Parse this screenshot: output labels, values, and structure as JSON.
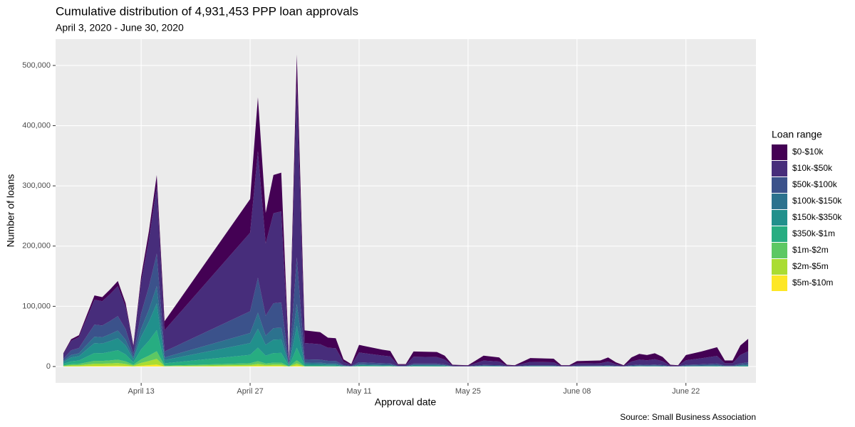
{
  "chart_data": {
    "type": "stacked_area",
    "title": "Cumulative distribution of 4,931,453 PPP loan approvals",
    "subtitle": "April 3, 2020 - June 30, 2020",
    "x_label": "Approval date",
    "y_label": "Number of loans",
    "source": "Source: Small Business Association",
    "legend_title": "Loan range",
    "legend": "right",
    "grid": true,
    "x": [
      "2020-04-03",
      "2020-04-04",
      "2020-04-05",
      "2020-04-06",
      "2020-04-07",
      "2020-04-08",
      "2020-04-09",
      "2020-04-10",
      "2020-04-11",
      "2020-04-12",
      "2020-04-13",
      "2020-04-14",
      "2020-04-15",
      "2020-04-16",
      "2020-04-27",
      "2020-04-28",
      "2020-04-29",
      "2020-04-30",
      "2020-05-01",
      "2020-05-02",
      "2020-05-03",
      "2020-05-04",
      "2020-05-06",
      "2020-05-07",
      "2020-05-08",
      "2020-05-09",
      "2020-05-10",
      "2020-05-11",
      "2020-05-14",
      "2020-05-15",
      "2020-05-16",
      "2020-05-17",
      "2020-05-18",
      "2020-05-21",
      "2020-05-22",
      "2020-05-23",
      "2020-05-25",
      "2020-05-27",
      "2020-05-29",
      "2020-05-30",
      "2020-05-31",
      "2020-06-02",
      "2020-06-05",
      "2020-06-06",
      "2020-06-07",
      "2020-06-08",
      "2020-06-11",
      "2020-06-12",
      "2020-06-13",
      "2020-06-14",
      "2020-06-15",
      "2020-06-16",
      "2020-06-17",
      "2020-06-18",
      "2020-06-19",
      "2020-06-20",
      "2020-06-21",
      "2020-06-22",
      "2020-06-24",
      "2020-06-26",
      "2020-06-27",
      "2020-06-28",
      "2020-06-29",
      "2020-06-30"
    ],
    "xlim": [
      "2020-04-02",
      "2020-07-01"
    ],
    "xticks": [
      {
        "value": "2020-04-13",
        "label": "April 13"
      },
      {
        "value": "2020-04-27",
        "label": "April 27"
      },
      {
        "value": "2020-05-11",
        "label": "May 11"
      },
      {
        "value": "2020-05-25",
        "label": "May 25"
      },
      {
        "value": "2020-06-08",
        "label": "June 08"
      },
      {
        "value": "2020-06-22",
        "label": "June 22"
      }
    ],
    "ylim": [
      -27200,
      543700
    ],
    "yticks": [
      0,
      {
        "value": 100000,
        "label": "100,000"
      },
      {
        "value": 200000,
        "label": "200,000"
      },
      {
        "value": 300000,
        "label": "300,000"
      },
      {
        "value": 400000,
        "label": "400,000"
      },
      {
        "value": 500000,
        "label": "500,000"
      }
    ],
    "series": [
      {
        "name": "$0-$10k",
        "color": "#440154",
        "values": [
          1300,
          2700,
          3100,
          5100,
          7100,
          6900,
          7700,
          8500,
          6300,
          2100,
          9000,
          13500,
          19100,
          15000,
          55600,
          89400,
          51000,
          63600,
          64400,
          2000,
          51800,
          21000,
          20000,
          16800,
          16500,
          4200,
          1400,
          12600,
          9800,
          9100,
          1400,
          1400,
          8800,
          8400,
          6300,
          1100,
          900,
          8100,
          6800,
          1400,
          900,
          6300,
          5900,
          900,
          900,
          4100,
          4500,
          6800,
          3200,
          900,
          6800,
          9500,
          8600,
          9900,
          7200,
          1400,
          900,
          8600,
          11300,
          14400,
          4500,
          4500,
          15800,
          20700
        ]
      },
      {
        "name": "$10k-$50k",
        "color": "#472D7B",
        "values": [
          7700,
          15800,
          18200,
          29800,
          41300,
          40300,
          44800,
          49700,
          36800,
          12300,
          52500,
          78800,
          111300,
          35300,
          130700,
          210100,
          119900,
          149500,
          151300,
          4700,
          284900,
          27000,
          25600,
          21600,
          21100,
          5400,
          1800,
          16200,
          12600,
          11700,
          1800,
          1800,
          11300,
          10800,
          8100,
          1300,
          800,
          7200,
          6000,
          1200,
          800,
          5600,
          5200,
          800,
          800,
          3600,
          4000,
          6000,
          2800,
          800,
          6000,
          8400,
          7600,
          8800,
          6400,
          1200,
          800,
          7600,
          10000,
          12800,
          4000,
          4000,
          14000,
          18400
        ]
      },
      {
        "name": "$50k-$100k",
        "color": "#3B528B",
        "values": [
          3700,
          7700,
          8800,
          14500,
          20100,
          19600,
          21800,
          24100,
          17900,
          6000,
          25500,
          38300,
          54100,
          9800,
          36100,
          58100,
          33200,
          41300,
          41900,
          1300,
          77700,
          5400,
          5100,
          4300,
          4200,
          1100,
          400,
          3200,
          2500,
          2300,
          400,
          400,
          2200,
          2200,
          1600,
          300,
          200,
          1400,
          1200,
          200,
          200,
          1100,
          1000,
          200,
          200,
          700,
          800,
          1200,
          600,
          200,
          1200,
          1700,
          1500,
          1800,
          1300,
          200,
          200,
          1500,
          2000,
          2600,
          800,
          800,
          2800,
          3700
        ]
      },
      {
        "name": "$100k-$150k",
        "color": "#2C728E",
        "values": [
          2000,
          4100,
          4700,
          7700,
          10600,
          10400,
          11500,
          12800,
          9500,
          3200,
          13500,
          20300,
          28600,
          4500,
          16700,
          26800,
          15300,
          19100,
          19300,
          600,
          36300,
          2400,
          2300,
          1900,
          1900,
          500,
          200,
          1400,
          1100,
          1000,
          200,
          200,
          1000,
          1000,
          700,
          100,
          100,
          500,
          500,
          100,
          100,
          400,
          400,
          100,
          100,
          300,
          300,
          500,
          200,
          100,
          500,
          600,
          600,
          700,
          500,
          100,
          100,
          600,
          800,
          1000,
          300,
          300,
          1100,
          1400
        ]
      },
      {
        "name": "$150k-$350k",
        "color": "#21908C",
        "values": [
          3100,
          6300,
          7300,
          11900,
          16500,
          16100,
          17900,
          19900,
          14700,
          4900,
          21000,
          31500,
          44500,
          5300,
          19500,
          31300,
          17900,
          22300,
          22500,
          700,
          36300,
          2400,
          2300,
          1900,
          1900,
          500,
          100,
          1400,
          1100,
          1000,
          100,
          100,
          1000,
          1000,
          700,
          100,
          0,
          500,
          400,
          100,
          0,
          400,
          300,
          0,
          0,
          200,
          300,
          400,
          200,
          0,
          400,
          500,
          500,
          600,
          400,
          100,
          0,
          500,
          600,
          800,
          300,
          300,
          900,
          1200
        ]
      },
      {
        "name": "$350k-$1m",
        "color": "#27AD81",
        "values": [
          2400,
          5000,
          5700,
          9400,
          13000,
          12700,
          14100,
          15600,
          11600,
          3900,
          16500,
          24800,
          35000,
          3800,
          13900,
          22400,
          12800,
          15900,
          16100,
          500,
          20700,
          1200,
          1100,
          1000,
          900,
          200,
          100,
          700,
          600,
          500,
          100,
          100,
          500,
          400,
          400,
          100,
          0,
          200,
          100,
          0,
          0,
          100,
          100,
          0,
          0,
          100,
          100,
          100,
          0,
          0,
          100,
          200,
          200,
          200,
          200,
          0,
          0,
          200,
          300,
          300,
          100,
          100,
          300,
          500
        ]
      },
      {
        "name": "$1m-$2m",
        "color": "#5DC863",
        "values": [
          900,
          1800,
          2100,
          3400,
          4700,
          4600,
          5100,
          5700,
          4200,
          1400,
          6000,
          9000,
          12700,
          800,
          2800,
          4500,
          2600,
          3200,
          3200,
          100,
          5200,
          300,
          300,
          200,
          200,
          100,
          0,
          200,
          100,
          200,
          0,
          0,
          100,
          100,
          100,
          0,
          0,
          100,
          0,
          0,
          0,
          100,
          100,
          0,
          0,
          0,
          0,
          0,
          0,
          0,
          0,
          100,
          0,
          0,
          0,
          0,
          0,
          0,
          0,
          100,
          0,
          0,
          100,
          100
        ]
      },
      {
        "name": "$2m-$5m",
        "color": "#AADC32",
        "values": [
          700,
          1400,
          1600,
          2600,
          3500,
          3500,
          3800,
          4300,
          3200,
          1100,
          4500,
          6800,
          9500,
          500,
          1900,
          3100,
          1800,
          2200,
          2300,
          100,
          3600,
          200,
          200,
          100,
          100,
          0,
          0,
          100,
          100,
          100,
          0,
          0,
          100,
          100,
          100,
          0,
          0,
          0,
          0,
          0,
          0,
          0,
          0,
          0,
          0,
          0,
          0,
          0,
          0,
          0,
          0,
          0,
          0,
          0,
          0,
          0,
          0,
          0,
          0,
          0,
          0,
          0,
          0,
          0
        ]
      },
      {
        "name": "$5m-$10m",
        "color": "#FDE725",
        "values": [
          200,
          500,
          500,
          900,
          1200,
          1200,
          1300,
          1400,
          1100,
          400,
          1500,
          2300,
          3200,
          200,
          800,
          1300,
          800,
          1000,
          1000,
          0,
          1600,
          100,
          100,
          100,
          100,
          0,
          0,
          100,
          0,
          100,
          0,
          0,
          0,
          0,
          0,
          0,
          0,
          0,
          0,
          0,
          0,
          0,
          0,
          0,
          0,
          0,
          0,
          0,
          0,
          0,
          0,
          0,
          0,
          0,
          0,
          0,
          0,
          0,
          0,
          0,
          0,
          0,
          0,
          0
        ]
      }
    ]
  }
}
